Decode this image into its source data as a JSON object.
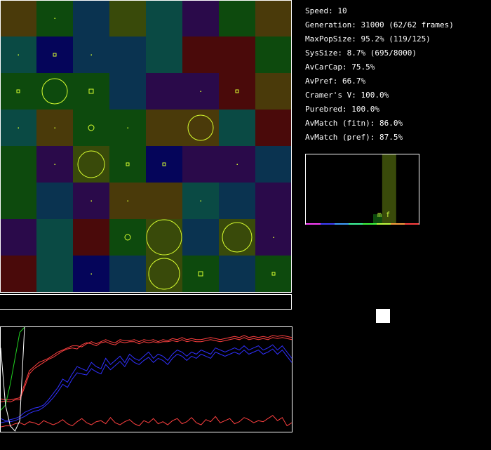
{
  "stats": {
    "speed": "Speed: 10",
    "generation": "Generation: 31000 (62/62 frames)",
    "maxpop": "MaxPopSize: 95.2% (119/125)",
    "syssize": "SysSize: 8.7% (695/8000)",
    "avcarcap": "AvCarCap: 75.5%",
    "avpref": "AvPref: 66.7%",
    "cramers": "Cramer's V: 100.0%",
    "purebred": "Purebred: 100.0%",
    "avmatch_fitn": "AvMatch (fitn): 86.0%",
    "avmatch_pref": "AvMatch (pref): 87.5%"
  },
  "world": {
    "cells": [
      [
        "#4a3a0a",
        "#0d4a0d",
        "#0a3350",
        "#394a0a",
        "#0a4a44",
        "#2a0a4a",
        "#0d4a0d",
        "#4a3a0a"
      ],
      [
        "#0a4a44",
        "#05055a",
        "#0a3350",
        "#0a3350",
        "#0a4a44",
        "#4a0a0a",
        "#4a0a0a",
        "#0d4a0d"
      ],
      [
        "#0d4a0d",
        "#0d4a0d",
        "#0d4a0d",
        "#0a3350",
        "#2a0a4a",
        "#2a0a4a",
        "#4a0a0a",
        "#4a3a0a"
      ],
      [
        "#0a4a44",
        "#4a3a0a",
        "#0d4a0d",
        "#0d4a0d",
        "#4a3a0a",
        "#4a3a0a",
        "#0a4a44",
        "#4a0a0a"
      ],
      [
        "#0d4a0d",
        "#2a0a4a",
        "#394a0a",
        "#0d4a0d",
        "#05055a",
        "#2a0a4a",
        "#2a0a4a",
        "#0a3350"
      ],
      [
        "#0d4a0d",
        "#0a3350",
        "#2a0a4a",
        "#4a3a0a",
        "#4a3a0a",
        "#0a4a44",
        "#0a3350",
        "#2a0a4a"
      ],
      [
        "#2a0a4a",
        "#0a4a44",
        "#4a0a0a",
        "#0d4a0d",
        "#394a0a",
        "#0a3350",
        "#394a0a",
        "#2a0a4a"
      ],
      [
        "#4a0a0a",
        "#0a4a44",
        "#05055a",
        "#0a3350",
        "#394a0a",
        "#0d4a0d",
        "#0a3350",
        "#0d4a0d"
      ]
    ],
    "populations": [
      [
        0,
        1,
        1
      ],
      [
        1,
        0,
        1
      ],
      [
        1,
        1,
        2
      ],
      [
        1,
        2,
        1
      ],
      [
        2,
        0,
        2
      ],
      [
        2,
        1,
        18
      ],
      [
        2,
        2,
        3
      ],
      [
        2,
        5,
        1
      ],
      [
        2,
        6,
        2
      ],
      [
        3,
        0,
        1
      ],
      [
        3,
        1,
        1
      ],
      [
        3,
        2,
        4
      ],
      [
        3,
        3,
        1
      ],
      [
        3,
        5,
        18
      ],
      [
        4,
        1,
        1
      ],
      [
        4,
        2,
        19
      ],
      [
        4,
        3,
        2
      ],
      [
        4,
        4,
        2
      ],
      [
        4,
        6,
        1
      ],
      [
        5,
        2,
        1
      ],
      [
        5,
        3,
        1
      ],
      [
        5,
        5,
        1
      ],
      [
        6,
        3,
        4
      ],
      [
        6,
        4,
        25
      ],
      [
        6,
        6,
        21
      ],
      [
        6,
        7,
        1
      ],
      [
        7,
        2,
        1
      ],
      [
        7,
        4,
        22
      ],
      [
        7,
        5,
        3
      ],
      [
        7,
        7,
        2
      ]
    ]
  },
  "histogram": {
    "label": "m f",
    "bars": [
      {
        "pos": 0.6,
        "value": 0.14,
        "color": "#0d4a0d"
      },
      {
        "pos": 0.68,
        "value": 1.0,
        "color": "#394a0a"
      }
    ]
  },
  "graph": {
    "series": [
      {
        "color": "#ff4040",
        "values": [
          0.31,
          0.3,
          0.3,
          0.31,
          0.32,
          0.45,
          0.58,
          0.62,
          0.66,
          0.68,
          0.7,
          0.73,
          0.76,
          0.78,
          0.8,
          0.82,
          0.82,
          0.81,
          0.84,
          0.86,
          0.84,
          0.86,
          0.88,
          0.86,
          0.85,
          0.88,
          0.87,
          0.87,
          0.88,
          0.86,
          0.88,
          0.87,
          0.88,
          0.86,
          0.88,
          0.87,
          0.89,
          0.88,
          0.9,
          0.88,
          0.89,
          0.88,
          0.88,
          0.89,
          0.9,
          0.89,
          0.88,
          0.89,
          0.9,
          0.91,
          0.9,
          0.92,
          0.9,
          0.91,
          0.9,
          0.91,
          0.9,
          0.92,
          0.91,
          0.92,
          0.91,
          0.9
        ]
      },
      {
        "color": "#ff4040",
        "values": [
          0.28,
          0.29,
          0.28,
          0.3,
          0.3,
          0.42,
          0.55,
          0.6,
          0.63,
          0.66,
          0.69,
          0.71,
          0.74,
          0.77,
          0.79,
          0.8,
          0.79,
          0.83,
          0.85,
          0.84,
          0.82,
          0.85,
          0.86,
          0.84,
          0.83,
          0.86,
          0.85,
          0.86,
          0.86,
          0.84,
          0.86,
          0.85,
          0.86,
          0.85,
          0.86,
          0.86,
          0.87,
          0.86,
          0.88,
          0.86,
          0.87,
          0.86,
          0.86,
          0.87,
          0.88,
          0.87,
          0.86,
          0.87,
          0.88,
          0.89,
          0.88,
          0.9,
          0.88,
          0.89,
          0.88,
          0.89,
          0.88,
          0.9,
          0.89,
          0.9,
          0.89,
          0.88
        ]
      },
      {
        "color": "#ff4040",
        "values": [
          0.04,
          0.05,
          0.05,
          0.07,
          0.08,
          0.06,
          0.09,
          0.08,
          0.06,
          0.1,
          0.08,
          0.06,
          0.08,
          0.11,
          0.07,
          0.05,
          0.09,
          0.12,
          0.08,
          0.06,
          0.09,
          0.1,
          0.07,
          0.13,
          0.08,
          0.06,
          0.09,
          0.11,
          0.07,
          0.05,
          0.1,
          0.08,
          0.12,
          0.07,
          0.09,
          0.06,
          0.1,
          0.12,
          0.07,
          0.09,
          0.13,
          0.08,
          0.06,
          0.11,
          0.09,
          0.14,
          0.08,
          0.1,
          0.12,
          0.07,
          0.09,
          0.13,
          0.11,
          0.08,
          0.1,
          0.09,
          0.12,
          0.15,
          0.1,
          0.13,
          0.05,
          0.08
        ]
      },
      {
        "color": "#3030ff",
        "values": [
          0.12,
          0.1,
          0.11,
          0.12,
          0.14,
          0.18,
          0.2,
          0.22,
          0.23,
          0.25,
          0.3,
          0.36,
          0.42,
          0.5,
          0.47,
          0.55,
          0.62,
          0.6,
          0.58,
          0.66,
          0.62,
          0.6,
          0.7,
          0.64,
          0.68,
          0.72,
          0.66,
          0.74,
          0.7,
          0.68,
          0.72,
          0.76,
          0.7,
          0.74,
          0.72,
          0.68,
          0.74,
          0.78,
          0.76,
          0.72,
          0.76,
          0.74,
          0.78,
          0.76,
          0.74,
          0.8,
          0.78,
          0.76,
          0.78,
          0.8,
          0.78,
          0.82,
          0.78,
          0.8,
          0.82,
          0.78,
          0.8,
          0.83,
          0.78,
          0.82,
          0.76,
          0.7
        ]
      },
      {
        "color": "#3030ff",
        "values": [
          0.08,
          0.09,
          0.09,
          0.1,
          0.12,
          0.14,
          0.17,
          0.19,
          0.2,
          0.23,
          0.27,
          0.32,
          0.38,
          0.45,
          0.42,
          0.5,
          0.56,
          0.55,
          0.54,
          0.6,
          0.57,
          0.55,
          0.64,
          0.59,
          0.63,
          0.67,
          0.62,
          0.7,
          0.66,
          0.64,
          0.68,
          0.71,
          0.66,
          0.7,
          0.68,
          0.64,
          0.7,
          0.74,
          0.72,
          0.68,
          0.72,
          0.7,
          0.74,
          0.72,
          0.7,
          0.76,
          0.74,
          0.72,
          0.74,
          0.76,
          0.74,
          0.78,
          0.74,
          0.76,
          0.78,
          0.74,
          0.76,
          0.79,
          0.74,
          0.78,
          0.72,
          0.66
        ]
      },
      {
        "color": "#20d020",
        "values": [
          0.2,
          0.25,
          0.45,
          0.7,
          0.95,
          1.0
        ]
      },
      {
        "color": "#ffffff",
        "values": [
          0.8,
          0.25,
          0.05,
          0.0,
          0.1,
          1.0
        ]
      }
    ]
  }
}
